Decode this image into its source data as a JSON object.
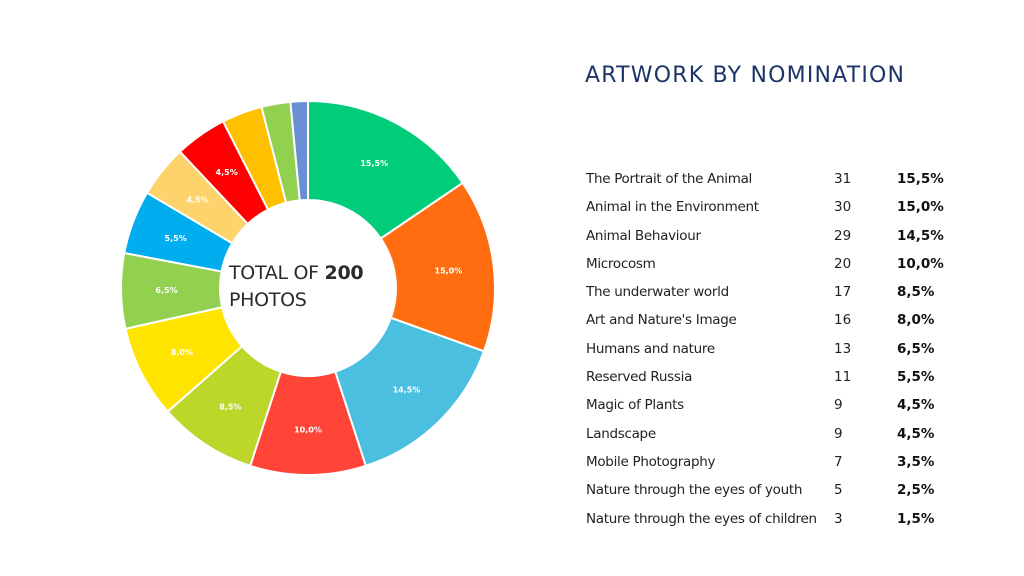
{
  "title": "ARTWORK BY NOMINATION",
  "center": {
    "prefix": "TOTAL OF ",
    "total": "200",
    "suffix": "PHOTOS"
  },
  "rows": [
    {
      "name": "The Portrait of the Animal",
      "count": "31",
      "pct": "15,5%"
    },
    {
      "name": "Animal in the Environment",
      "count": "30",
      "pct": "15,0%"
    },
    {
      "name": "Animal Behaviour",
      "count": "29",
      "pct": "14,5%"
    },
    {
      "name": "Microcosm",
      "count": "20",
      "pct": "10,0%"
    },
    {
      "name": "The underwater world",
      "count": "17",
      "pct": "8,5%"
    },
    {
      "name": "Art and Nature's Image",
      "count": "16",
      "pct": "8,0%"
    },
    {
      "name": "Humans and nature",
      "count": "13",
      "pct": "6,5%"
    },
    {
      "name": "Reserved Russia",
      "count": "11",
      "pct": "5,5%"
    },
    {
      "name": "Magic of Plants",
      "count": "9",
      "pct": "4,5%"
    },
    {
      "name": "Landscape",
      "count": "9",
      "pct": "4,5%"
    },
    {
      "name": "Mobile Photography",
      "count": "7",
      "pct": "3,5%"
    },
    {
      "name": "Nature through the eyes of youth",
      "count": "5",
      "pct": "2,5%"
    },
    {
      "name": "Nature through the eyes of children",
      "count": "3",
      "pct": "1,5%"
    }
  ],
  "chart_data": {
    "type": "pie",
    "subtype": "donut",
    "title": "ARTWORK BY NOMINATION",
    "center_label": "TOTAL OF 200 PHOTOS",
    "total": 200,
    "categories": [
      "The Portrait of the Animal",
      "Animal in the Environment",
      "Animal Behaviour",
      "Microcosm",
      "The underwater world",
      "Art and Nature's Image",
      "Humans and nature",
      "Reserved Russia",
      "Magic of Plants",
      "Landscape",
      "Mobile Photography",
      "Nature through the eyes of youth",
      "Nature through the eyes of children"
    ],
    "values": [
      31,
      30,
      29,
      20,
      17,
      16,
      13,
      11,
      9,
      9,
      7,
      5,
      3
    ],
    "percentages": [
      15.5,
      15.0,
      14.5,
      10.0,
      8.5,
      8.0,
      6.5,
      5.5,
      4.5,
      4.5,
      3.5,
      2.5,
      1.5
    ],
    "slice_labels": [
      "15,5%",
      "15,0%",
      "14,5%",
      "10,0%",
      "8,5%",
      "8,0%",
      "6,5%",
      "5,5%",
      "4,5%",
      "4,5%",
      "",
      "",
      ""
    ],
    "colors": [
      "#00cc7a",
      "#ff6d10",
      "#4bbfe0",
      "#ff4438",
      "#bcd62a",
      "#ffe400",
      "#92d050",
      "#00aeef",
      "#ffd36b",
      "#ff0000",
      "#ffc000",
      "#92d050",
      "#6a8fd4"
    ],
    "start_angle_deg": 0,
    "direction": "clockwise",
    "legend_position": "right-table"
  }
}
